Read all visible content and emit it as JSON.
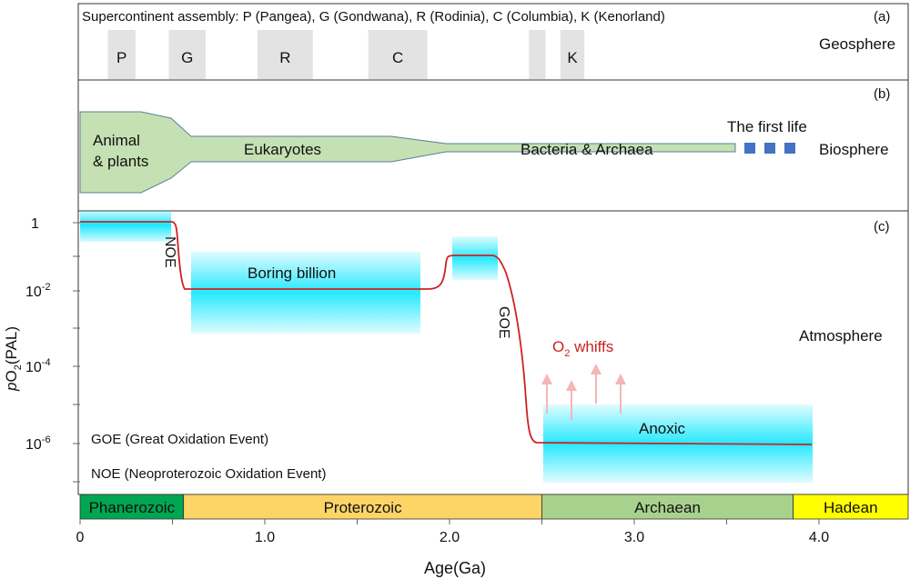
{
  "panel_a": {
    "title": "Supercontinent assembly: P (Pangea), G (Gondwana), R (Rodinia), C (Columbia), K (Kenorland)",
    "letter": "(a)",
    "side_label": "Geosphere",
    "blocks": [
      {
        "label": "P",
        "start_ga": 0.15,
        "end_ga": 0.3
      },
      {
        "label": "G",
        "start_ga": 0.48,
        "end_ga": 0.68
      },
      {
        "label": "R",
        "start_ga": 0.96,
        "end_ga": 1.26
      },
      {
        "label": "C",
        "start_ga": 1.56,
        "end_ga": 1.88
      },
      {
        "label": "",
        "start_ga": 2.43,
        "end_ga": 2.52
      },
      {
        "label": "K",
        "start_ga": 2.6,
        "end_ga": 2.73
      }
    ]
  },
  "panel_b": {
    "letter": "(b)",
    "side_label": "Biosphere",
    "label_animals_1": "Animal",
    "label_animals_2": "& plants",
    "label_eukaryotes": "Eukaryotes",
    "label_bacteria": "Bacteria & Archaea",
    "label_first_life": "The first life",
    "fill_color": "#c5e0b3",
    "square_color": "#4472c4"
  },
  "panel_c": {
    "letter": "(c)",
    "side_label": "Atmosphere",
    "ylabel_p": "p",
    "ylabel_main": "O",
    "ylabel_sub": "2",
    "ylabel_unit": "(PAL)",
    "y_ticks": [
      {
        "base": "1",
        "exp": ""
      },
      {
        "base": "10",
        "exp": "-2"
      },
      {
        "base": "10",
        "exp": "-4"
      },
      {
        "base": "10",
        "exp": "-6"
      }
    ],
    "label_noe": "NOE",
    "label_goe": "GOE",
    "label_boring": "Boring billion",
    "label_anoxic": "Anoxic",
    "label_whiffs_main": "O",
    "label_whiffs_sub": "2",
    "label_whiffs_rest": " whiffs",
    "legend_goe": "GOE (Great Oxidation Event)",
    "legend_noe": "NOE (Neoproterozoic Oxidation Event)",
    "curve_color": "#cc2222",
    "band_color": "#00e5ff"
  },
  "eons": [
    {
      "name": "Phanerozoic",
      "start_ga": 0.0,
      "end_ga": 0.56,
      "color": "#00a651"
    },
    {
      "name": "Proterozoic",
      "start_ga": 0.56,
      "end_ga": 2.5,
      "color": "#fdd466"
    },
    {
      "name": "Archaean",
      "start_ga": 2.5,
      "end_ga": 3.86,
      "color": "#a9d18e"
    },
    {
      "name": "Hadean",
      "start_ga": 3.86,
      "end_ga": 4.5,
      "color": "#ffff00"
    }
  ],
  "x_axis": {
    "label": "Age(Ga)",
    "ticks": [
      "0",
      "1.0",
      "2.0",
      "3.0",
      "4.0"
    ]
  }
}
